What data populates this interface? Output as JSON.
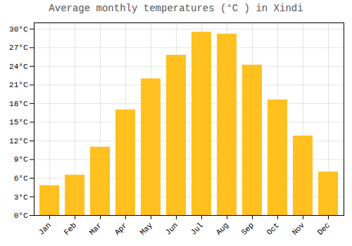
{
  "chart_data": {
    "type": "bar",
    "title": "Average monthly temperatures (°C ) in Xindi",
    "categories": [
      "Jan",
      "Feb",
      "Mar",
      "Apr",
      "May",
      "Jun",
      "Jul",
      "Aug",
      "Sep",
      "Oct",
      "Nov",
      "Dec"
    ],
    "values": [
      4.8,
      6.5,
      11.0,
      17.0,
      22.0,
      25.8,
      29.5,
      29.2,
      24.2,
      18.6,
      12.8,
      7.0
    ],
    "color": "#FFC020",
    "ylim": [
      0,
      31
    ],
    "yticks": [
      {
        "value": 0,
        "label": "0°C"
      },
      {
        "value": 3,
        "label": "3°C"
      },
      {
        "value": 6,
        "label": "6°C"
      },
      {
        "value": 9,
        "label": "9°C"
      },
      {
        "value": 12,
        "label": "12°C"
      },
      {
        "value": 15,
        "label": "15°C"
      },
      {
        "value": 18,
        "label": "18°C"
      },
      {
        "value": 21,
        "label": "21°C"
      },
      {
        "value": 24,
        "label": "24°C"
      },
      {
        "value": 27,
        "label": "27°C"
      },
      {
        "value": 30,
        "label": "30°C"
      }
    ],
    "grid": true
  }
}
